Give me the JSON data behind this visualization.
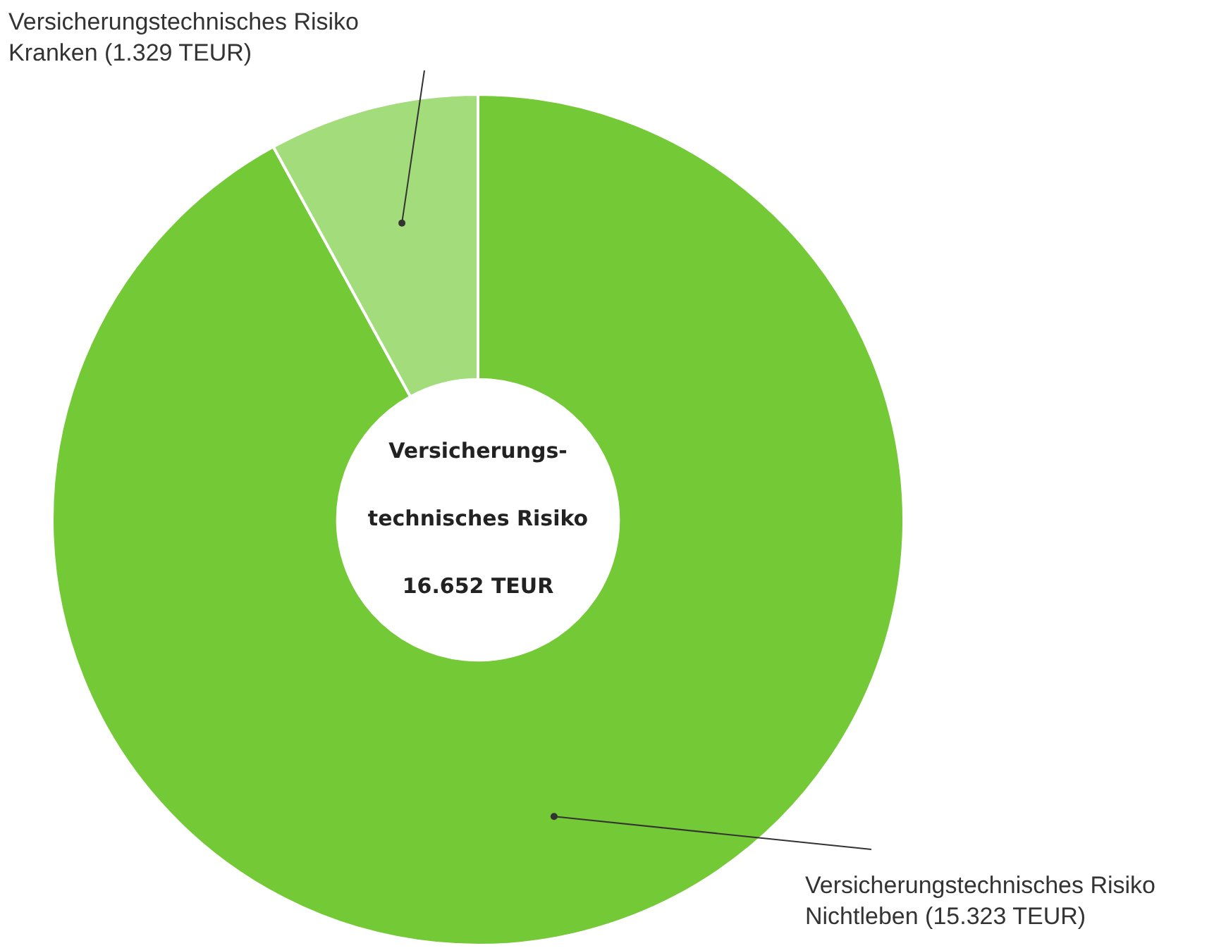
{
  "chart_data": {
    "type": "donut",
    "categories": [
      "Versicherungstechnisches Risiko Nichtleben (15.323 TEUR)",
      "Versicherungstechnisches Risiko Kranken (1.329 TEUR)"
    ],
    "values": [
      15323,
      1329
    ],
    "colors": [
      "#74c936",
      "#a3dc7a"
    ],
    "annotations": [
      "Versicherungs-",
      "technisches Risiko",
      "16.652 TEUR"
    ],
    "legend": false
  }
}
